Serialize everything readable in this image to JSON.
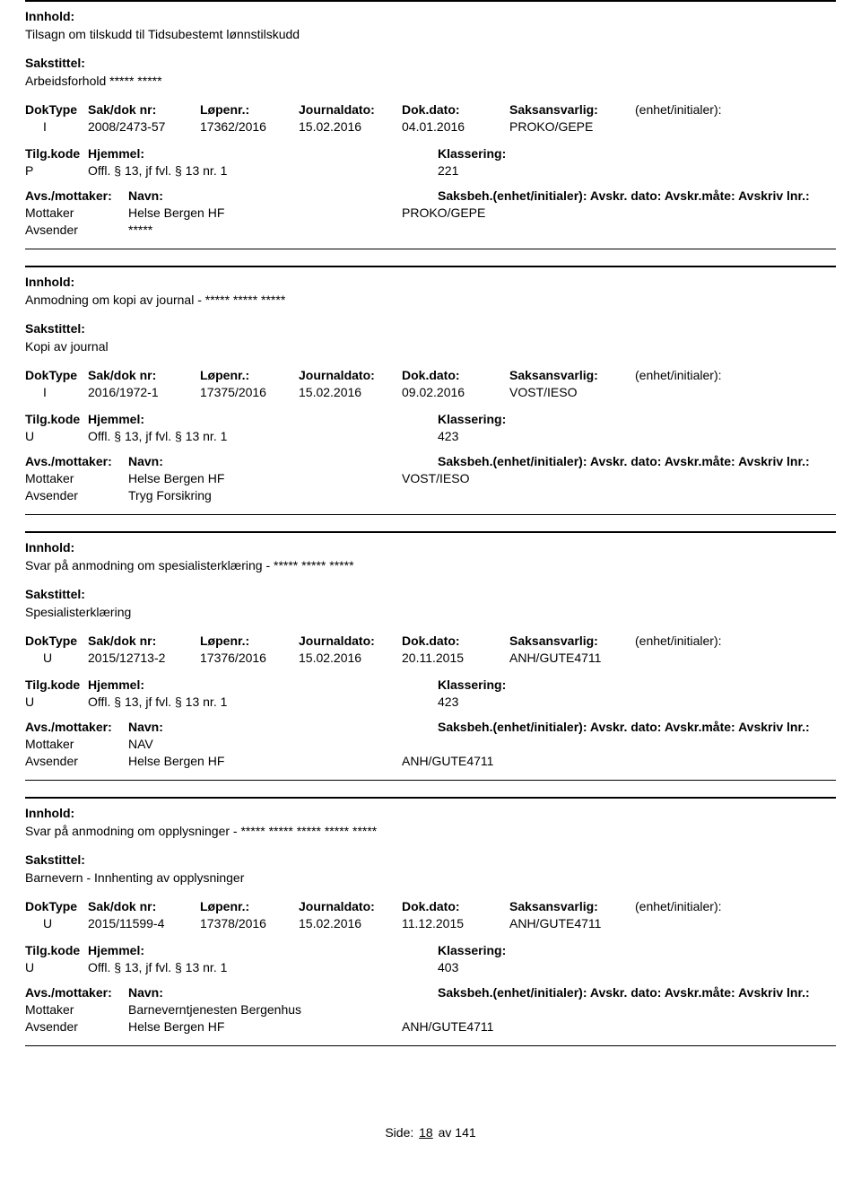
{
  "labels": {
    "innhold": "Innhold:",
    "sakstittel": "Sakstittel:",
    "doktype": "DokType",
    "sakdok": "Sak/dok nr:",
    "lopenr": "Løpenr.:",
    "journaldato": "Journaldato:",
    "dokdato": "Dok.dato:",
    "saksansvarlig": "Saksansvarlig:",
    "enhet": "(enhet/initialer):",
    "tilgkode": "Tilg.kode",
    "hjemmel": "Hjemmel:",
    "klassering": "Klassering:",
    "avsmottaker": "Avs./mottaker:",
    "navn": "Navn:",
    "saksbeh": "Saksbeh.(enhet/initialer): Avskr. dato: Avskr.måte: Avskriv lnr.:",
    "mottaker": "Mottaker",
    "avsender": "Avsender"
  },
  "entries": [
    {
      "innhold": "Tilsagn om tilskudd til Tidsubestemt lønnstilskudd",
      "sakstittel": "Arbeidsforhold  ***** *****",
      "doktype": "I",
      "sakdok": "2008/2473-57",
      "lopenr": "17362/2016",
      "journaldato": "15.02.2016",
      "dokdato": "04.01.2016",
      "saksansvarlig": "PROKO/GEPE",
      "tilgkode": "P",
      "hjemmel": "Offl. § 13, jf fvl. § 13 nr. 1",
      "klassering": "221",
      "parties": [
        {
          "role": "Mottaker",
          "name": "Helse Bergen HF",
          "handler": "PROKO/GEPE"
        },
        {
          "role": "Avsender",
          "name": "*****",
          "handler": ""
        }
      ]
    },
    {
      "innhold": "Anmodning om kopi av journal - ***** ***** *****",
      "sakstittel": "Kopi av journal",
      "doktype": "I",
      "sakdok": "2016/1972-1",
      "lopenr": "17375/2016",
      "journaldato": "15.02.2016",
      "dokdato": "09.02.2016",
      "saksansvarlig": "VOST/IESO",
      "tilgkode": "U",
      "hjemmel": "Offl. § 13, jf fvl. § 13 nr. 1",
      "klassering": "423",
      "parties": [
        {
          "role": "Mottaker",
          "name": "Helse Bergen HF",
          "handler": "VOST/IESO"
        },
        {
          "role": "Avsender",
          "name": "Tryg Forsikring",
          "handler": ""
        }
      ]
    },
    {
      "innhold": "Svar på anmodning om spesialisterklæring - ***** ***** *****",
      "sakstittel": "Spesialisterklæring",
      "doktype": "U",
      "sakdok": "2015/12713-2",
      "lopenr": "17376/2016",
      "journaldato": "15.02.2016",
      "dokdato": "20.11.2015",
      "saksansvarlig": "ANH/GUTE4711",
      "tilgkode": "U",
      "hjemmel": "Offl. § 13, jf fvl. § 13 nr. 1",
      "klassering": "423",
      "parties": [
        {
          "role": "Mottaker",
          "name": "NAV",
          "handler": ""
        },
        {
          "role": "Avsender",
          "name": "Helse Bergen HF",
          "handler": "ANH/GUTE4711"
        }
      ]
    },
    {
      "innhold": "Svar på anmodning om opplysninger - ***** ***** ***** ***** *****",
      "sakstittel": "Barnevern - Innhenting av opplysninger",
      "doktype": "U",
      "sakdok": "2015/11599-4",
      "lopenr": "17378/2016",
      "journaldato": "15.02.2016",
      "dokdato": "11.12.2015",
      "saksansvarlig": "ANH/GUTE4711",
      "tilgkode": "U",
      "hjemmel": "Offl. § 13, jf fvl. § 13 nr. 1",
      "klassering": "403",
      "parties": [
        {
          "role": "Mottaker",
          "name": "Barneverntjenesten Bergenhus",
          "handler": ""
        },
        {
          "role": "Avsender",
          "name": "Helse Bergen HF",
          "handler": "ANH/GUTE4711"
        }
      ]
    }
  ],
  "footer": {
    "side_label": "Side:",
    "page": "18",
    "sep": "av",
    "total": "141"
  }
}
